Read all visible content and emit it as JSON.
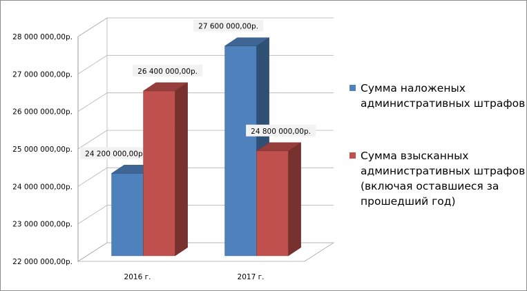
{
  "chart_data": {
    "type": "bar",
    "categories": [
      "2016 г.",
      "2017 г."
    ],
    "series": [
      {
        "name": "Сумма наложеных административных штрафов",
        "values": [
          24200000,
          27600000
        ],
        "labels": [
          "24 200 000,00р.",
          "27 600 000,00р."
        ],
        "color": "#4f81bd"
      },
      {
        "name": "Сумма взысканных административных штрафов (включая оставшиеся за прошедший год)",
        "values": [
          26400000,
          24800000
        ],
        "labels": [
          "26 400 000,00р.",
          "24 800 000,00р."
        ],
        "color": "#c0504d"
      }
    ],
    "yticks": [
      22000000,
      23000000,
      24000000,
      25000000,
      26000000,
      27000000,
      28000000
    ],
    "ytick_labels": [
      "22 000 000,00р.",
      "23 000 000,00р.",
      "24 000 000,00р.",
      "25 000 000,00р.",
      "26 000 000,00р.",
      "27 000 000,00р.",
      "28 000 000,00р."
    ],
    "ylim": [
      22000000,
      28000000
    ],
    "grid": true,
    "legend_position": "right",
    "legend": [
      [
        "Сумма наложеных",
        "административных штрафов"
      ],
      [
        "Сумма взысканных",
        "административных штрафов",
        "(включая оставшиеся за",
        "прошедший год)"
      ]
    ],
    "title": "",
    "xlabel": "",
    "ylabel": ""
  }
}
